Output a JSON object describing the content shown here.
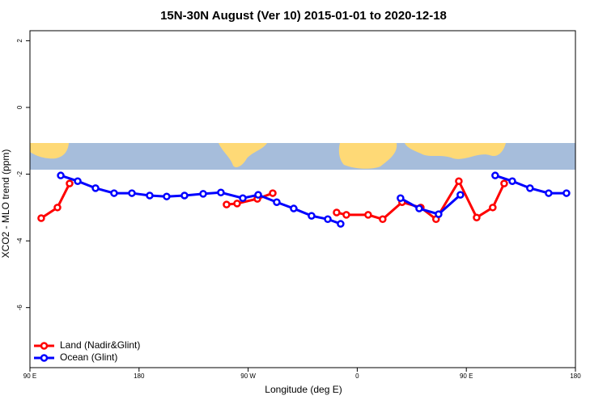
{
  "chart_data": {
    "type": "line",
    "title": "15N-30N August (Ver 10)   2015-01-01 to 2020-12-18",
    "xlabel": "Longitude (deg E)",
    "ylabel": "XCO2 - MLO trend (ppm)",
    "xlim": [
      90,
      540
    ],
    "ylim": [
      -7.8,
      2.3
    ],
    "xticks": [
      {
        "value": 90,
        "label": "90 E"
      },
      {
        "value": 180,
        "label": "180"
      },
      {
        "value": 270,
        "label": "90 W"
      },
      {
        "value": 360,
        "label": "0"
      },
      {
        "value": 450,
        "label": "90 E"
      },
      {
        "value": 540,
        "label": "180"
      }
    ],
    "yticks": [
      2,
      0,
      -2,
      -4,
      -6
    ],
    "legend": "bottomleft",
    "series": [
      {
        "name": "Land (Nadir&Glint)",
        "color": "#ff0000",
        "x": [
          99.3,
          112.7,
          122.7,
          null,
          252.2,
          260.9,
          277.6,
          290.3,
          null,
          343.0,
          351.0,
          369.0,
          381.0,
          397.0,
          412.4,
          425.0,
          443.8,
          458.5,
          471.8,
          481.2
        ],
        "values": [
          -3.32,
          -3.0,
          -2.28,
          null,
          -2.91,
          -2.88,
          -2.74,
          -2.57,
          null,
          -3.15,
          -3.22,
          -3.22,
          -3.35,
          -2.84,
          -3.0,
          -3.35,
          -2.21,
          -3.3,
          -3.0,
          -2.28
        ]
      },
      {
        "name": "Ocean (Glint)",
        "color": "#0000ff",
        "x": [
          115.4,
          129.4,
          144.1,
          159.4,
          174.1,
          188.8,
          202.8,
          217.5,
          232.9,
          247.5,
          265.6,
          278.3,
          293.6,
          307.6,
          322.3,
          335.7,
          346.3,
          null,
          395.7,
          411.1,
          427.1,
          445.1,
          null,
          473.8,
          487.9,
          502.5,
          517.9,
          532.6
        ],
        "values": [
          -2.04,
          -2.21,
          -2.42,
          -2.57,
          -2.57,
          -2.64,
          -2.67,
          -2.64,
          -2.59,
          -2.55,
          -2.72,
          -2.62,
          -2.84,
          -3.03,
          -3.25,
          -3.35,
          -3.49,
          null,
          -2.72,
          -3.03,
          -3.2,
          -2.62,
          null,
          -2.04,
          -2.21,
          -2.42,
          -2.57,
          -2.57
        ]
      }
    ]
  }
}
